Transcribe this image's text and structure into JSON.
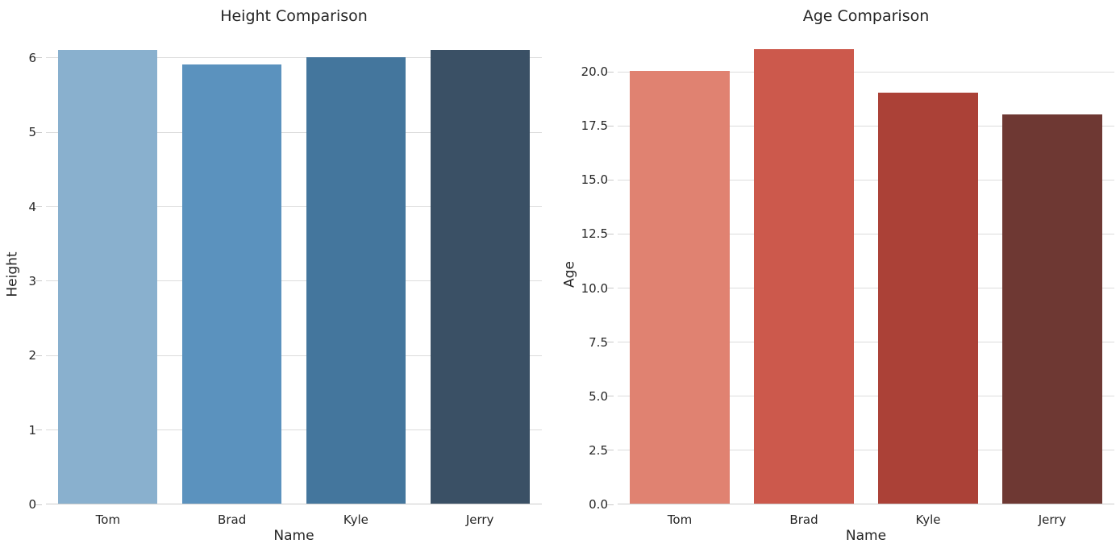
{
  "chart_data": [
    {
      "type": "bar",
      "title": "Height Comparison",
      "xlabel": "Name",
      "ylabel": "Height",
      "categories": [
        "Tom",
        "Brad",
        "Kyle",
        "Jerry"
      ],
      "values": [
        6.1,
        5.9,
        6.0,
        6.1
      ],
      "bar_colors": [
        "#89b0ce",
        "#5b92be",
        "#44769d",
        "#3a5065"
      ],
      "yticks": [
        0,
        1,
        2,
        3,
        4,
        5,
        6
      ],
      "ytick_labels": [
        "0",
        "1",
        "2",
        "3",
        "4",
        "5",
        "6"
      ],
      "ylim": [
        0,
        6.27
      ],
      "bar_fraction": 0.8,
      "grid": true,
      "legend": false
    },
    {
      "type": "bar",
      "title": "Age Comparison",
      "xlabel": "Name",
      "ylabel": "Age",
      "categories": [
        "Tom",
        "Brad",
        "Kyle",
        "Jerry"
      ],
      "values": [
        20,
        21,
        19,
        18
      ],
      "bar_colors": [
        "#e08271",
        "#cc594c",
        "#ab4137",
        "#6e3833"
      ],
      "yticks": [
        0,
        2.5,
        5,
        7.5,
        10,
        12.5,
        15,
        17.5,
        20
      ],
      "ytick_labels": [
        "0.0",
        "2.5",
        "5.0",
        "7.5",
        "10.0",
        "12.5",
        "15.0",
        "17.5",
        "20.0"
      ],
      "ylim": [
        0,
        21.57
      ],
      "bar_fraction": 0.8,
      "grid": true,
      "legend": false
    }
  ],
  "style": {
    "background": "#ffffff",
    "grid_color": "#dcdcdc",
    "axis_color": "#cccccc",
    "text_color": "#262626"
  }
}
